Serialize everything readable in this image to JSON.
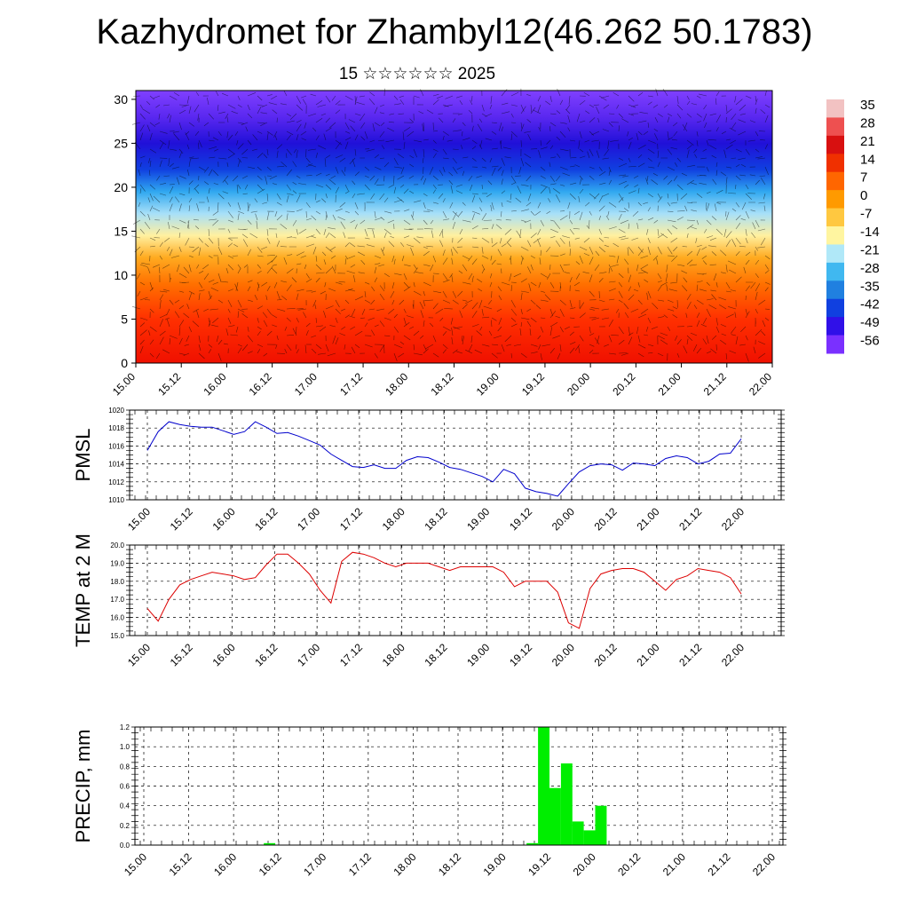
{
  "header": {
    "title": "Kazhydromet for Zhambyl12(46.262 50.1783)",
    "subtitle": "15 ☆☆☆☆☆☆ 2025"
  },
  "chart_data": [
    {
      "type": "heatmap",
      "title": "",
      "x_ticks": [
        "15.00",
        "15.12",
        "16.00",
        "16.12",
        "17.00",
        "17.12",
        "18.00",
        "18.12",
        "19.00",
        "19.12",
        "20.00",
        "20.12",
        "21.00",
        "21.12",
        "22.00"
      ],
      "y_ticks": [
        "0",
        "5",
        "10",
        "15",
        "20",
        "25",
        "30"
      ],
      "ylim": [
        0,
        31
      ],
      "colorbar": {
        "labels": [
          "35",
          "28",
          "21",
          "14",
          "7",
          "0",
          "-7",
          "-14",
          "-21",
          "-28",
          "-35",
          "-42",
          "-49",
          "-56"
        ],
        "colors": [
          "#f2c2c2",
          "#ee5050",
          "#d81010",
          "#f03000",
          "#ff6600",
          "#ff9a00",
          "#ffc840",
          "#fff5a0",
          "#b0e8f8",
          "#40b8f0",
          "#2080e0",
          "#1040e0",
          "#3010e8",
          "#7a30ff"
        ]
      },
      "bands": [
        {
          "level": 0,
          "color": "#f01000"
        },
        {
          "level": 5,
          "color": "#ff3000"
        },
        {
          "level": 9,
          "color": "#ff7000"
        },
        {
          "level": 12,
          "color": "#ffaa20"
        },
        {
          "level": 14.5,
          "color": "#fff0a0"
        },
        {
          "level": 17,
          "color": "#a8e0f8"
        },
        {
          "level": 19.5,
          "color": "#30a8f0"
        },
        {
          "level": 22,
          "color": "#1040e0"
        },
        {
          "level": 25,
          "color": "#2010d8"
        },
        {
          "level": 28,
          "color": "#5a28f0"
        },
        {
          "level": 31,
          "color": "#8040ff"
        }
      ]
    },
    {
      "type": "line",
      "ylabel": "PMSL",
      "x_ticks": [
        "15.00",
        "15.12",
        "16.00",
        "16.12",
        "17.00",
        "17.12",
        "18.00",
        "18.12",
        "19.00",
        "19.12",
        "20.00",
        "20.12",
        "21.00",
        "21.12",
        "22.00"
      ],
      "y_ticks": [
        "1010",
        "1012",
        "1014",
        "1016",
        "1018",
        "1020"
      ],
      "ylim": [
        1010,
        1020
      ],
      "color": "#0000cc",
      "values": [
        1015.5,
        1017.6,
        1018.7,
        1018.4,
        1018.2,
        1018.1,
        1018.1,
        1017.7,
        1017.3,
        1017.6,
        1018.7,
        1018.1,
        1017.4,
        1017.5,
        1017.1,
        1016.6,
        1016.1,
        1015.1,
        1014.4,
        1013.7,
        1013.6,
        1013.9,
        1013.5,
        1013.5,
        1014.4,
        1014.8,
        1014.7,
        1014.2,
        1013.6,
        1013.4,
        1013.0,
        1012.6,
        1012.0,
        1013.4,
        1012.9,
        1011.3,
        1010.9,
        1010.7,
        1010.4,
        1011.8,
        1013.1,
        1013.8,
        1014.0,
        1013.9,
        1013.3,
        1014.1,
        1014.0,
        1013.8,
        1014.6,
        1014.9,
        1014.7,
        1014.0,
        1014.3,
        1015.1,
        1015.2,
        1016.8
      ]
    },
    {
      "type": "line",
      "ylabel": "TEMP at 2 M",
      "x_ticks": [
        "15.00",
        "15.12",
        "16.00",
        "16.12",
        "17.00",
        "17.12",
        "18.00",
        "18.12",
        "19.00",
        "19.12",
        "20.00",
        "20.12",
        "21.00",
        "21.12",
        "22.00"
      ],
      "y_ticks": [
        "15.0",
        "16.0",
        "17.0",
        "18.0",
        "19.0",
        "20.0"
      ],
      "ylim": [
        15,
        20
      ],
      "color": "#dd0000",
      "values": [
        16.5,
        15.8,
        17.0,
        17.8,
        18.1,
        18.3,
        18.5,
        18.4,
        18.3,
        18.1,
        18.2,
        18.9,
        19.5,
        19.5,
        19.0,
        18.4,
        17.5,
        16.8,
        19.1,
        19.6,
        19.5,
        19.3,
        19.0,
        18.8,
        19.0,
        19.0,
        19.0,
        18.8,
        18.6,
        18.8,
        18.8,
        18.8,
        18.8,
        18.5,
        17.7,
        18.0,
        18.0,
        18.0,
        17.4,
        15.7,
        15.4,
        17.6,
        18.4,
        18.6,
        18.7,
        18.7,
        18.5,
        18.0,
        17.5,
        18.1,
        18.3,
        18.7,
        18.6,
        18.5,
        18.2,
        17.3
      ]
    },
    {
      "type": "bar",
      "ylabel": "PRECIP, mm",
      "x_ticks": [
        "15.00",
        "15.12",
        "16.00",
        "16.12",
        "17.00",
        "17.12",
        "18.00",
        "18.12",
        "19.00",
        "19.12",
        "20.00",
        "20.12",
        "21.00",
        "21.12",
        "22.00"
      ],
      "y_ticks": [
        "0.0",
        "0.2",
        "0.4",
        "0.6",
        "0.8",
        "1.0",
        "1.2"
      ],
      "ylim": [
        0,
        1.2
      ],
      "color": "#00ee00",
      "values": [
        0,
        0,
        0,
        0,
        0,
        0,
        0,
        0,
        0,
        0,
        0,
        0.02,
        0,
        0,
        0,
        0,
        0,
        0,
        0,
        0,
        0,
        0,
        0,
        0,
        0,
        0,
        0,
        0,
        0,
        0,
        0,
        0,
        0,
        0,
        0.02,
        1.2,
        0.58,
        0.83,
        0.24,
        0.15,
        0.4,
        0,
        0,
        0,
        0,
        0,
        0,
        0,
        0,
        0,
        0,
        0,
        0,
        0,
        0,
        0
      ]
    }
  ]
}
